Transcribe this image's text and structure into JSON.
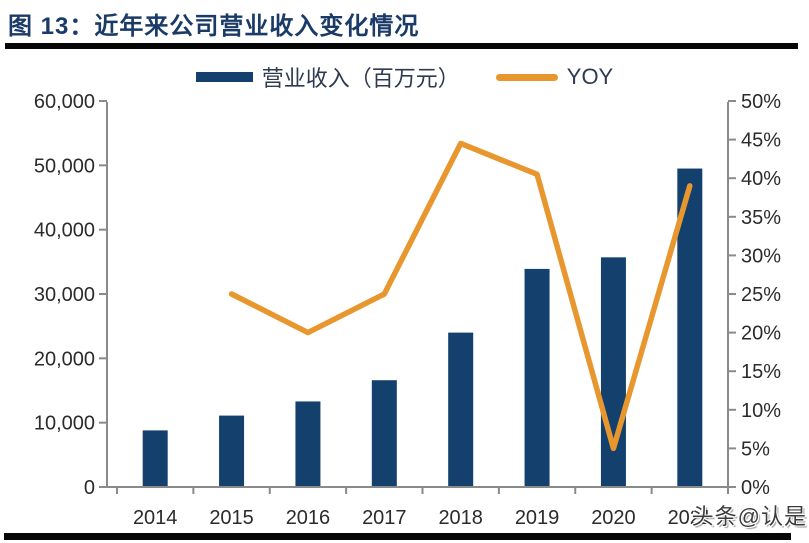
{
  "figure_title": "图 13：近年来公司营业收入变化情况",
  "legend": {
    "items": [
      {
        "label": "营业收入（百万元）",
        "type": "bar"
      },
      {
        "label": "YOY",
        "type": "line"
      }
    ]
  },
  "watermark": "头条@认是",
  "colors": {
    "bar": "#14406E",
    "line": "#E8962E",
    "title": "#1A3A68",
    "axis": "#8A8A8A",
    "tick_label": "#2B2B2B",
    "rule": "#060606"
  },
  "chart_data": {
    "type": "combo-bar-line",
    "title": "图 13：近年来公司营业收入变化情况",
    "categories": [
      "2014",
      "2015",
      "2016",
      "2017",
      "2018",
      "2019",
      "2020",
      "2021"
    ],
    "series": [
      {
        "name": "营业收入（百万元）",
        "type": "bar",
        "axis": "left",
        "values": [
          8800,
          11100,
          13300,
          16600,
          24000,
          33900,
          35700,
          49500
        ]
      },
      {
        "name": "YOY",
        "type": "line",
        "axis": "right",
        "unit": "%",
        "values": [
          null,
          25,
          20,
          25,
          44.5,
          40.5,
          5,
          39
        ]
      }
    ],
    "left_axis": {
      "min": 0,
      "max": 60000,
      "step": 10000,
      "tick_labels": [
        "0",
        "10,000",
        "20,000",
        "30,000",
        "40,000",
        "50,000",
        "60,000"
      ]
    },
    "right_axis": {
      "min": 0,
      "max": 50,
      "step": 5,
      "tick_labels": [
        "0%",
        "5%",
        "10%",
        "15%",
        "20%",
        "25%",
        "30%",
        "35%",
        "40%",
        "45%",
        "50%"
      ]
    },
    "grid": false,
    "legend_position": "top"
  }
}
